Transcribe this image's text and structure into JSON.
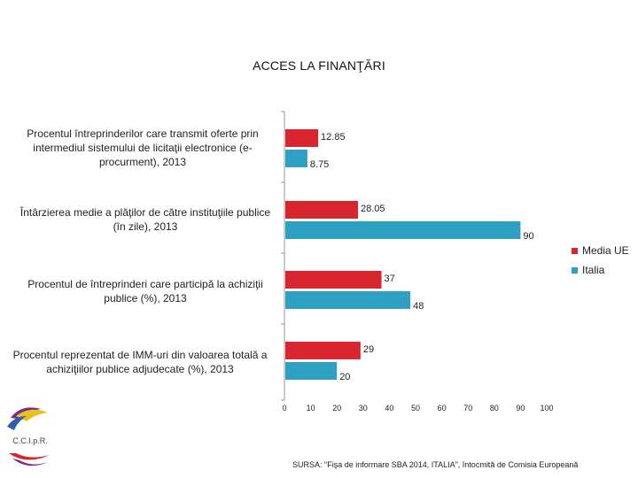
{
  "title": "ACCES LA FINANŢĂRI",
  "source": "SURSA: \"Fişa de informare SBA 2014, ITALIA\", întocmită de Comisia Europeană",
  "logo": {
    "text": "C.C.I.p.R.",
    "icon": "cci-logo"
  },
  "chart_data": {
    "type": "bar",
    "orientation": "horizontal",
    "categories": [
      "Procentul întreprinderilor care transmit oferte prin intermediul sistemului de licitaţii electronice (e-procurment), 2013",
      "Întârzierea medie a plăţilor de către instituţiile publice (în zile), 2013",
      "Procentul de întreprinderi care participă la achiziţii publice (%), 2013",
      "Procentul reprezentat de IMM-uri din valoarea totală a achiziţiilor publice adjudecate (%), 2013"
    ],
    "series": [
      {
        "name": "Media UE",
        "color": "#d9262e",
        "values": [
          12.85,
          28.05,
          37,
          29
        ],
        "labels": [
          "12.85",
          "28.05",
          "37",
          "29"
        ]
      },
      {
        "name": "Italia",
        "color": "#2ea0c2",
        "values": [
          8.75,
          90,
          48,
          20
        ],
        "labels": [
          "8.75",
          "90",
          "48",
          "20"
        ]
      }
    ],
    "xlim": [
      0,
      100
    ],
    "xticks": [
      0,
      10,
      20,
      30,
      40,
      50,
      60,
      70,
      80,
      90,
      100
    ],
    "legend_position": "right",
    "grid": false
  }
}
